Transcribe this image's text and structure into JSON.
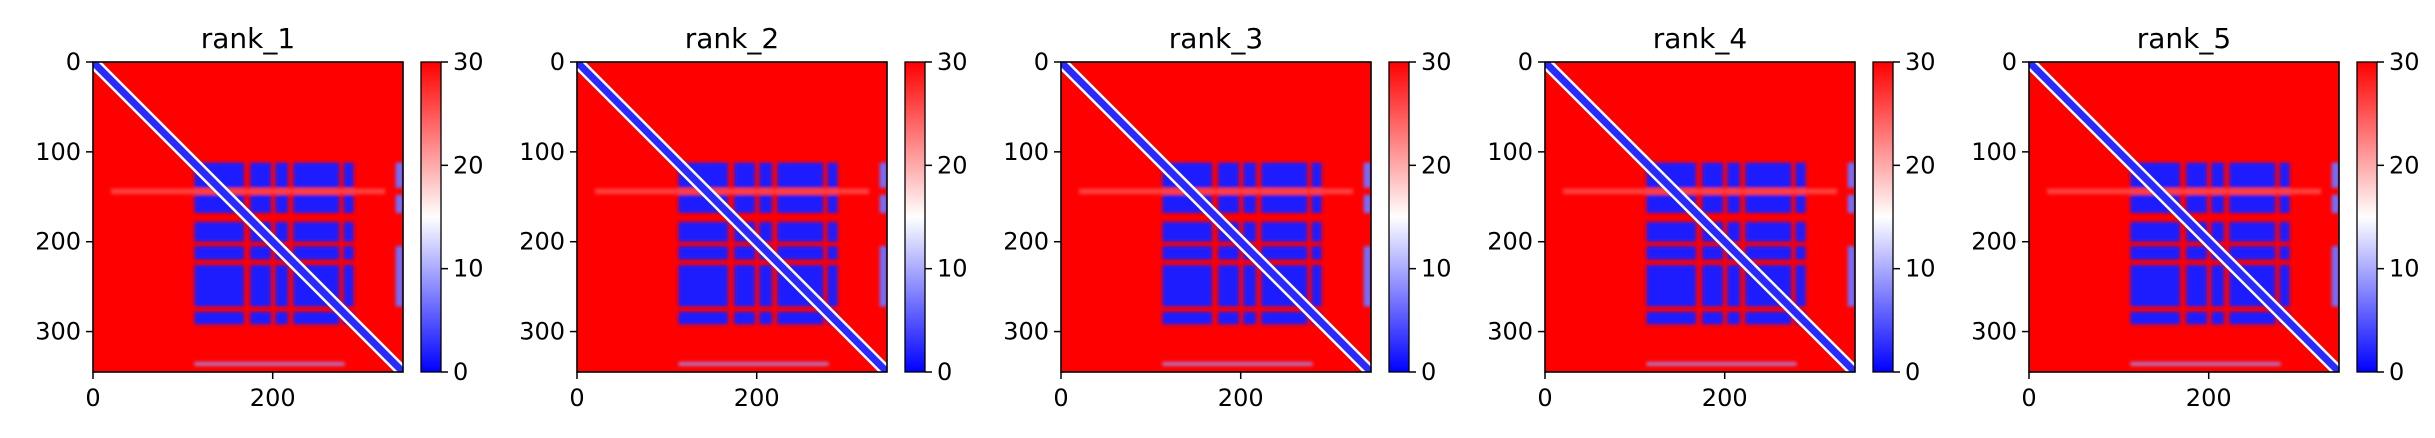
{
  "chart_data": [
    {
      "type": "heatmap",
      "title": "rank_1",
      "xlim": [
        0,
        345
      ],
      "ylim": [
        345,
        0
      ],
      "xticks": [
        0,
        200
      ],
      "yticks": [
        0,
        100,
        200,
        300
      ],
      "colorbar": {
        "range": [
          0,
          30
        ],
        "ticks": [
          0,
          10,
          20,
          30
        ],
        "colormap": [
          "#0000ff",
          "#ffffff",
          "#ff0000"
        ]
      },
      "description": "Predicted aligned error matrix: low error (blue) along the diagonal and in the block spanning residues ~110-290; high error (red) elsewhere."
    },
    {
      "type": "heatmap",
      "title": "rank_2",
      "xlim": [
        0,
        345
      ],
      "ylim": [
        345,
        0
      ],
      "xticks": [
        0,
        200
      ],
      "yticks": [
        0,
        100,
        200,
        300
      ],
      "colorbar": {
        "range": [
          0,
          30
        ],
        "ticks": [
          0,
          10,
          20,
          30
        ],
        "colormap": [
          "#0000ff",
          "#ffffff",
          "#ff0000"
        ]
      },
      "description": "Predicted aligned error matrix: low error (blue) along the diagonal and in the block spanning residues ~110-290; high error (red) elsewhere."
    },
    {
      "type": "heatmap",
      "title": "rank_3",
      "xlim": [
        0,
        345
      ],
      "ylim": [
        345,
        0
      ],
      "xticks": [
        0,
        200
      ],
      "yticks": [
        0,
        100,
        200,
        300
      ],
      "colorbar": {
        "range": [
          0,
          30
        ],
        "ticks": [
          0,
          10,
          20,
          30
        ],
        "colormap": [
          "#0000ff",
          "#ffffff",
          "#ff0000"
        ]
      },
      "description": "Predicted aligned error matrix: low error (blue) along the diagonal and in the block spanning residues ~110-290; high error (red) elsewhere."
    },
    {
      "type": "heatmap",
      "title": "rank_4",
      "xlim": [
        0,
        345
      ],
      "ylim": [
        345,
        0
      ],
      "xticks": [
        0,
        200
      ],
      "yticks": [
        0,
        100,
        200,
        300
      ],
      "colorbar": {
        "range": [
          0,
          30
        ],
        "ticks": [
          0,
          10,
          20,
          30
        ],
        "colormap": [
          "#0000ff",
          "#ffffff",
          "#ff0000"
        ]
      },
      "description": "Predicted aligned error matrix: low error (blue) along the diagonal and in the block spanning residues ~110-290; high error (red) elsewhere."
    },
    {
      "type": "heatmap",
      "title": "rank_5",
      "xlim": [
        0,
        345
      ],
      "ylim": [
        345,
        0
      ],
      "xticks": [
        0,
        200
      ],
      "yticks": [
        0,
        100,
        200,
        300
      ],
      "colorbar": {
        "range": [
          0,
          30
        ],
        "ticks": [
          0,
          10,
          20,
          30
        ],
        "colormap": [
          "#0000ff",
          "#ffffff",
          "#ff0000"
        ]
      },
      "description": "Predicted aligned error matrix: low error (blue) along the diagonal and in the block spanning residues ~110-290; high error (red) elsewhere."
    }
  ]
}
